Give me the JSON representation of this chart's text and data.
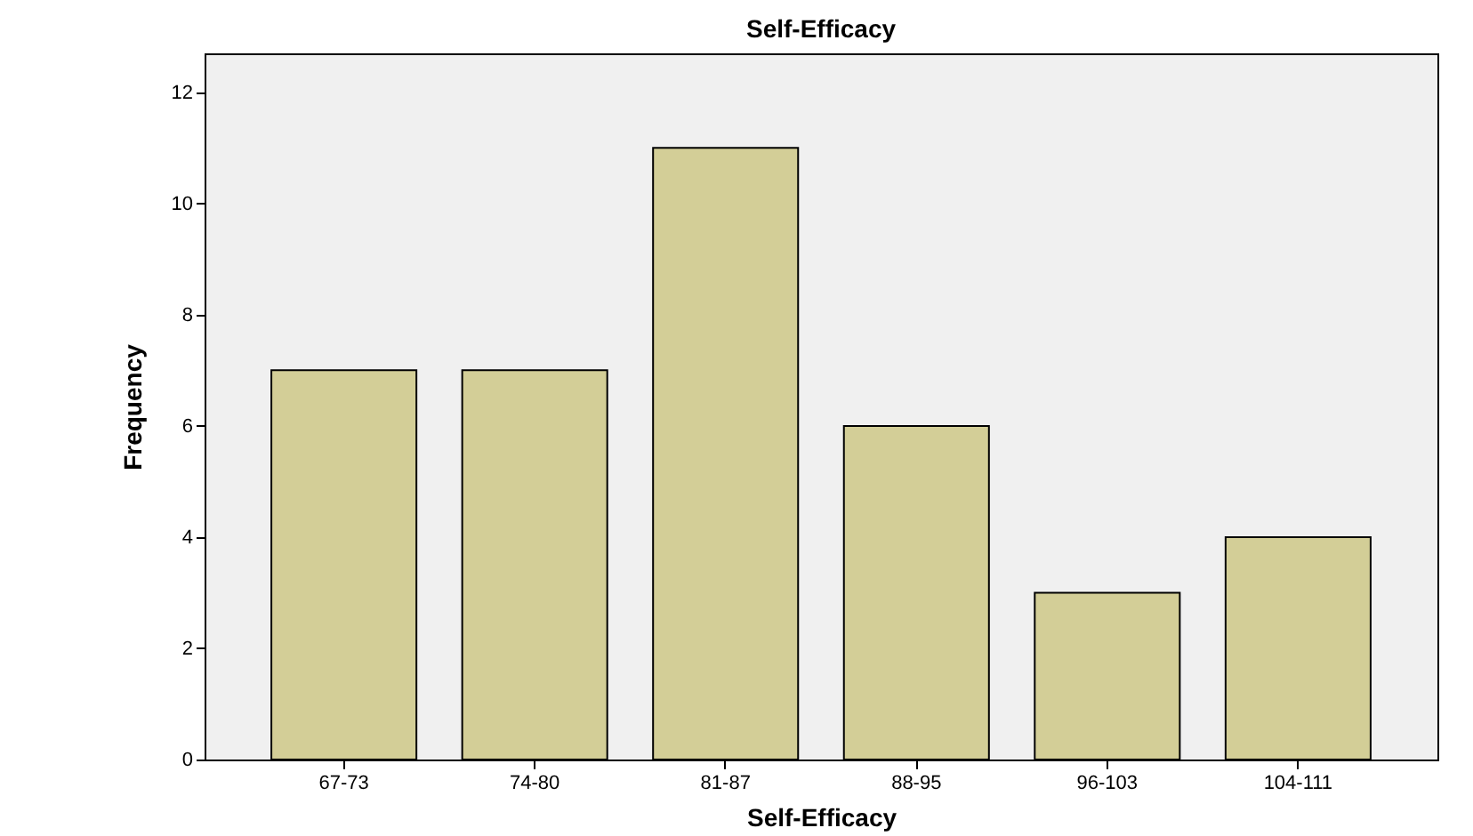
{
  "chart_data": {
    "type": "bar",
    "title": "Self-Efficacy",
    "xlabel": "Self-Efficacy",
    "ylabel": "Frequency",
    "categories": [
      "67-73",
      "74-80",
      "81-87",
      "88-95",
      "96-103",
      "104-111"
    ],
    "values": [
      7,
      7,
      11,
      6,
      3,
      4
    ],
    "color": "#d3ce97",
    "ylim": [
      0,
      12.7
    ],
    "yticks": [
      0,
      2,
      4,
      6,
      8,
      10,
      12
    ],
    "grid": false
  }
}
